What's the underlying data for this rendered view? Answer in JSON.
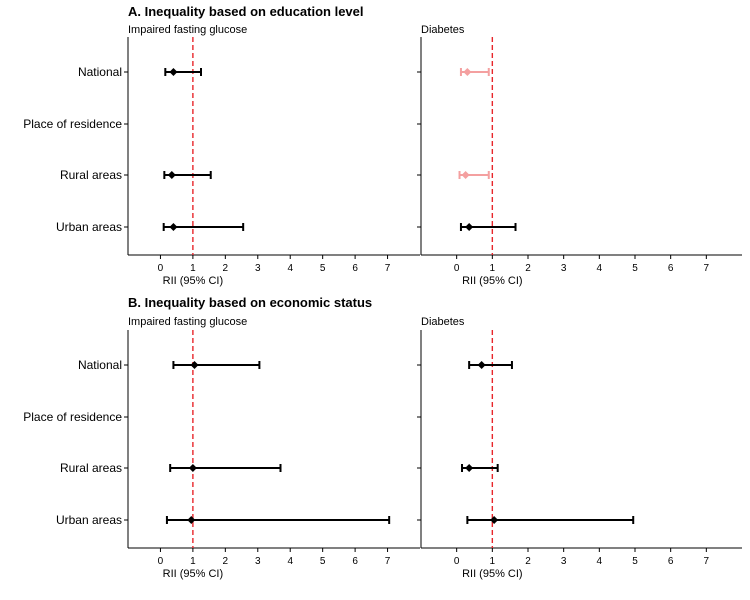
{
  "chart_data": [
    {
      "type": "forest",
      "section_title": "A. Inequality based on education level",
      "panel_title": "Impaired fasting glucose",
      "xlabel": "RII (95% CI)",
      "xticks": [
        0,
        1,
        2,
        3,
        4,
        5,
        6,
        7
      ],
      "xlim": [
        -1,
        8
      ],
      "reference_line": 1,
      "reference_color": "#e8262b",
      "rows": [
        {
          "label": "National",
          "estimate": 0.4,
          "lower": 0.15,
          "upper": 1.25,
          "color": "#000000"
        },
        {
          "label": "Place of residence"
        },
        {
          "label": "Rural areas",
          "estimate": 0.35,
          "lower": 0.12,
          "upper": 1.55,
          "color": "#000000"
        },
        {
          "label": "Urban areas",
          "estimate": 0.4,
          "lower": 0.1,
          "upper": 2.55,
          "color": "#000000"
        }
      ]
    },
    {
      "type": "forest",
      "panel_title": "Diabetes",
      "xlabel": "RII (95% CI)",
      "xticks": [
        0,
        1,
        2,
        3,
        4,
        5,
        6,
        7
      ],
      "xlim": [
        -1,
        8
      ],
      "reference_line": 1,
      "reference_color": "#e8262b",
      "rows": [
        {
          "label": "National",
          "estimate": 0.3,
          "lower": 0.12,
          "upper": 0.9,
          "color": "#f4a0a0"
        },
        {
          "label": "Place of residence"
        },
        {
          "label": "Rural areas",
          "estimate": 0.25,
          "lower": 0.08,
          "upper": 0.9,
          "color": "#f4a0a0"
        },
        {
          "label": "Urban areas",
          "estimate": 0.35,
          "lower": 0.12,
          "upper": 1.65,
          "color": "#000000"
        }
      ]
    },
    {
      "type": "forest",
      "section_title": "B. Inequality based on economic status",
      "panel_title": "Impaired fasting glucose",
      "xlabel": "RII (95% CI)",
      "xticks": [
        0,
        1,
        2,
        3,
        4,
        5,
        6,
        7
      ],
      "xlim": [
        -1,
        8
      ],
      "reference_line": 1,
      "reference_color": "#e8262b",
      "rows": [
        {
          "label": "National",
          "estimate": 1.05,
          "lower": 0.4,
          "upper": 3.05,
          "color": "#000000"
        },
        {
          "label": "Place of residence"
        },
        {
          "label": "Rural areas",
          "estimate": 1.0,
          "lower": 0.3,
          "upper": 3.7,
          "color": "#000000"
        },
        {
          "label": "Urban areas",
          "estimate": 0.95,
          "lower": 0.2,
          "upper": 7.05,
          "color": "#000000"
        }
      ]
    },
    {
      "type": "forest",
      "panel_title": "Diabetes",
      "xlabel": "RII (95% CI)",
      "xticks": [
        0,
        1,
        2,
        3,
        4,
        5,
        6,
        7
      ],
      "xlim": [
        -1,
        8
      ],
      "reference_line": 1,
      "reference_color": "#e8262b",
      "rows": [
        {
          "label": "National",
          "estimate": 0.7,
          "lower": 0.35,
          "upper": 1.55,
          "color": "#000000"
        },
        {
          "label": "Place of residence"
        },
        {
          "label": "Rural areas",
          "estimate": 0.35,
          "lower": 0.15,
          "upper": 1.15,
          "color": "#000000"
        },
        {
          "label": "Urban areas",
          "estimate": 1.05,
          "lower": 0.3,
          "upper": 4.95,
          "color": "#000000"
        }
      ]
    }
  ]
}
